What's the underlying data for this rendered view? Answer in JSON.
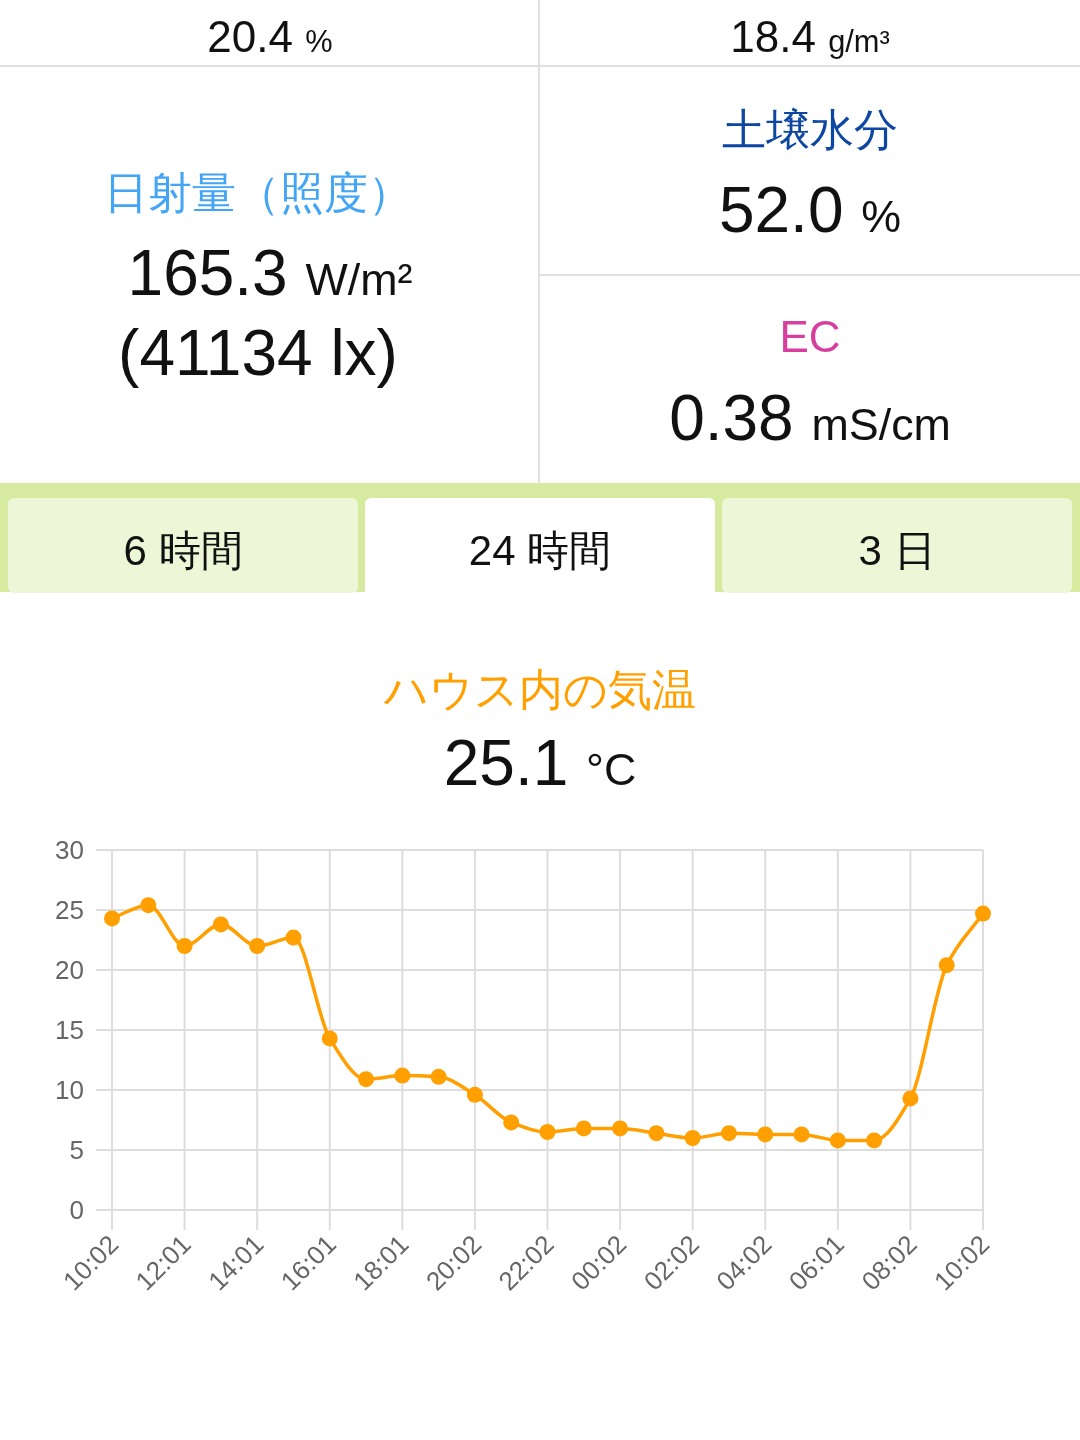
{
  "chart_data": [
    {
      "type": "other",
      "annotations": [
        "20.4 %",
        "18.4 g/m³",
        "日射量（照度）",
        "165.3 W/m²",
        "(41134 lx)",
        "土壌水分",
        "52.0 %",
        "EC",
        "0.38 mS/cm",
        "6 時間",
        "24 時間",
        "3 日"
      ],
      "colors": [
        "#111111",
        "#111111",
        "#42a5f5",
        "#111111",
        "#111111",
        "#0d47a1",
        "#111111",
        "#d63fa0",
        "#111111",
        "#111111",
        "#111111",
        "#111111"
      ]
    },
    {
      "type": "line",
      "title": "ハウス内の気温",
      "subtitle": "25.1 °C",
      "categories": [
        "10:02",
        null,
        "12:01",
        null,
        "14:01",
        null,
        "16:01",
        null,
        "18:01",
        null,
        "20:02",
        null,
        "22:02",
        null,
        "00:02",
        null,
        "02:02",
        null,
        "04:02",
        null,
        "06:01",
        null,
        "08:02",
        null,
        "10:02"
      ],
      "series": [
        {
          "color": "#ff9f00",
          "values": [
            24.3,
            25.4,
            22.0,
            23.8,
            22.0,
            22.7,
            14.3,
            10.9,
            11.2,
            11.1,
            9.6,
            7.3,
            6.5,
            6.8,
            6.8,
            6.4,
            6.0,
            6.4,
            6.3,
            6.3,
            5.8,
            5.8,
            9.3,
            20.4,
            24.7
          ]
        }
      ],
      "ylim": [
        0,
        30
      ],
      "yticks": [
        0,
        5,
        10,
        15,
        20,
        25,
        30
      ],
      "grid": true,
      "marker": "circle"
    }
  ]
}
